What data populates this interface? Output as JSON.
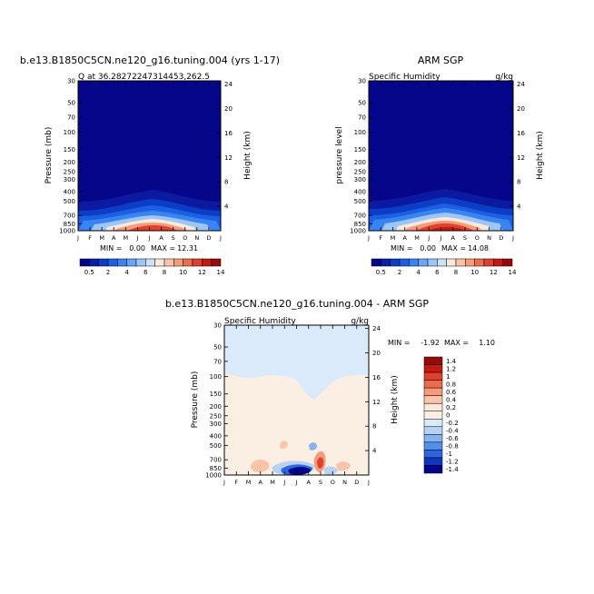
{
  "chart_data": [
    {
      "type": "heatmap",
      "title": "b.e13.B1850C5CN.ne120_g16.tuning.004 (yrs 1-17)",
      "subtitle_left": "Q at 36.28272247314453,262.5",
      "subtitle_right": "",
      "ylabel_left": "Pressure (mb)",
      "ylabel_right": "Height (km)",
      "x_ticks": [
        "J",
        "F",
        "M",
        "A",
        "M",
        "J",
        "J",
        "A",
        "S",
        "O",
        "N",
        "D",
        "J"
      ],
      "y_left_ticks": [
        "30",
        "50",
        "70",
        "100",
        "150",
        "200",
        "250",
        "300",
        "400",
        "500",
        "700",
        "850",
        "1000"
      ],
      "y_right_ticks": [
        "24",
        "20",
        "16",
        "12",
        "8",
        "4"
      ],
      "min_label": "MIN =",
      "min_value": "0.00",
      "max_label": "MAX =",
      "max_value": "12.31"
    },
    {
      "type": "heatmap",
      "title": "ARM SGP",
      "subtitle_left": "Specific Humidity",
      "subtitle_right": "g/kg",
      "ylabel_left": "pressure level",
      "ylabel_right": "Height (km)",
      "x_ticks": [
        "J",
        "F",
        "M",
        "A",
        "M",
        "J",
        "J",
        "A",
        "S",
        "O",
        "N",
        "D",
        "J"
      ],
      "y_left_ticks": [
        "30",
        "50",
        "70",
        "100",
        "150",
        "200",
        "250",
        "300",
        "400",
        "500",
        "700",
        "850",
        "1000"
      ],
      "y_right_ticks": [
        "24",
        "20",
        "16",
        "12",
        "8",
        "4"
      ],
      "min_label": "MIN =",
      "min_value": "0.00",
      "max_label": "MAX =",
      "max_value": "14.08"
    },
    {
      "type": "heatmap",
      "title": "b.e13.B1850C5CN.ne120_g16.tuning.004 - ARM SGP",
      "subtitle_left": "Specific Humidity",
      "subtitle_right": "g/kg",
      "ylabel_left": "Pressure (mb)",
      "ylabel_right": "Height (km)",
      "x_ticks": [
        "J",
        "F",
        "M",
        "A",
        "M",
        "J",
        "J",
        "A",
        "S",
        "O",
        "N",
        "D",
        "J"
      ],
      "y_left_ticks": [
        "30",
        "50",
        "70",
        "100",
        "150",
        "200",
        "250",
        "300",
        "400",
        "500",
        "700",
        "850",
        "1000"
      ],
      "y_right_ticks": [
        "24",
        "20",
        "16",
        "12",
        "8",
        "4"
      ],
      "min_label": "MIN =",
      "min_value": "-1.92",
      "max_label": "MAX =",
      "max_value": "1.10"
    }
  ],
  "colorbar_abs": {
    "labels": [
      "0.5",
      "2",
      "4",
      "6",
      "8",
      "10",
      "12",
      "14"
    ],
    "colors": [
      "#06068a",
      "#0a1ea6",
      "#0b3dc6",
      "#1c5fe3",
      "#3a84f2",
      "#6aa6f5",
      "#9cc6f7",
      "#cde2f9",
      "#fde9dc",
      "#f9c4a8",
      "#f59a7a",
      "#ee6a4d",
      "#e0412c",
      "#c41a14",
      "#960a0a"
    ]
  },
  "colorbar_diff": {
    "labels": [
      "1.4",
      "1.2",
      "1",
      "0.8",
      "0.6",
      "0.4",
      "0.2",
      "0",
      "-0.2",
      "-0.4",
      "-0.6",
      "-0.8",
      "-1",
      "-1.2",
      "-1.4"
    ],
    "colors": [
      "#960a0a",
      "#c41a14",
      "#e0412c",
      "#ee6a4d",
      "#f59a7a",
      "#f9c4a8",
      "#fde9dc",
      "#fbeee2",
      "#dbeafb",
      "#b6d2f6",
      "#86b3f1",
      "#5490ea",
      "#2d66de",
      "#1036c0",
      "#06068a"
    ]
  }
}
